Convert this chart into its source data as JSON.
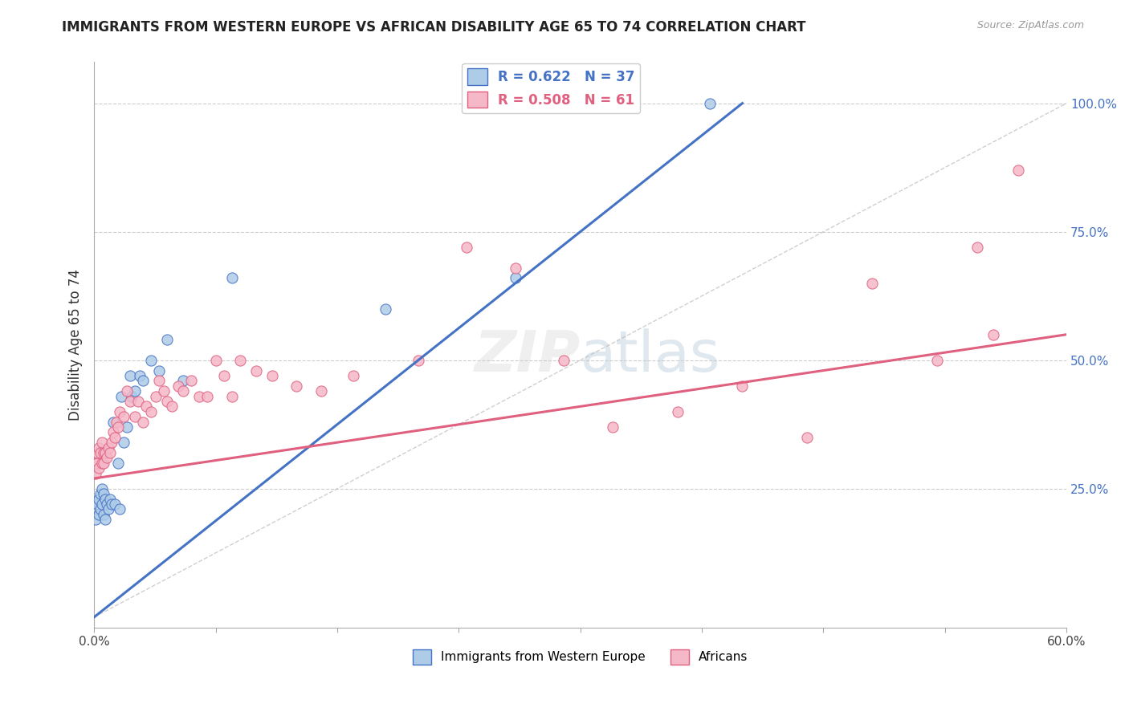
{
  "title": "IMMIGRANTS FROM WESTERN EUROPE VS AFRICAN DISABILITY AGE 65 TO 74 CORRELATION CHART",
  "source": "Source: ZipAtlas.com",
  "ylabel": "Disability Age 65 to 74",
  "xlim": [
    0.0,
    0.6
  ],
  "ylim": [
    -0.02,
    1.08
  ],
  "xticks": [
    0.0,
    0.075,
    0.15,
    0.225,
    0.3,
    0.375,
    0.45,
    0.525,
    0.6
  ],
  "yticks_right": [
    0.25,
    0.5,
    0.75,
    1.0
  ],
  "ytick_labels_right": [
    "25.0%",
    "50.0%",
    "75.0%",
    "100.0%"
  ],
  "legend_r_blue": "R = 0.622",
  "legend_n_blue": "N = 37",
  "legend_r_pink": "R = 0.508",
  "legend_n_pink": "N = 61",
  "legend_label_blue": "Immigrants from Western Europe",
  "legend_label_pink": "Africans",
  "color_blue": "#AECCE8",
  "color_pink": "#F5B8C8",
  "color_blue_line": "#4472C4",
  "color_pink_line": "#E06080",
  "color_blue_text": "#4472C4",
  "color_pink_text": "#E06080",
  "blue_trend": [
    0.0,
    0.4,
    0.0,
    1.0
  ],
  "pink_trend": [
    0.0,
    0.6,
    0.27,
    0.55
  ],
  "blue_x": [
    0.001,
    0.002,
    0.002,
    0.003,
    0.003,
    0.004,
    0.004,
    0.005,
    0.005,
    0.006,
    0.006,
    0.007,
    0.007,
    0.008,
    0.009,
    0.01,
    0.011,
    0.012,
    0.013,
    0.015,
    0.016,
    0.017,
    0.018,
    0.02,
    0.022,
    0.023,
    0.025,
    0.028,
    0.03,
    0.035,
    0.04,
    0.045,
    0.055,
    0.085,
    0.18,
    0.26,
    0.38
  ],
  "blue_y": [
    0.19,
    0.21,
    0.22,
    0.2,
    0.23,
    0.21,
    0.24,
    0.22,
    0.25,
    0.2,
    0.24,
    0.19,
    0.23,
    0.22,
    0.21,
    0.23,
    0.22,
    0.38,
    0.22,
    0.3,
    0.21,
    0.43,
    0.34,
    0.37,
    0.47,
    0.43,
    0.44,
    0.47,
    0.46,
    0.5,
    0.48,
    0.54,
    0.46,
    0.66,
    0.6,
    0.66,
    1.0
  ],
  "pink_x": [
    0.001,
    0.001,
    0.002,
    0.002,
    0.003,
    0.003,
    0.004,
    0.005,
    0.005,
    0.006,
    0.006,
    0.007,
    0.008,
    0.009,
    0.01,
    0.011,
    0.012,
    0.013,
    0.014,
    0.015,
    0.016,
    0.018,
    0.02,
    0.022,
    0.025,
    0.027,
    0.03,
    0.032,
    0.035,
    0.038,
    0.04,
    0.043,
    0.045,
    0.048,
    0.052,
    0.055,
    0.06,
    0.065,
    0.07,
    0.075,
    0.08,
    0.085,
    0.09,
    0.1,
    0.11,
    0.125,
    0.14,
    0.16,
    0.2,
    0.23,
    0.26,
    0.29,
    0.32,
    0.36,
    0.4,
    0.44,
    0.48,
    0.52,
    0.545,
    0.555,
    0.57
  ],
  "pink_y": [
    0.28,
    0.3,
    0.3,
    0.32,
    0.29,
    0.33,
    0.32,
    0.3,
    0.34,
    0.32,
    0.3,
    0.32,
    0.31,
    0.33,
    0.32,
    0.34,
    0.36,
    0.35,
    0.38,
    0.37,
    0.4,
    0.39,
    0.44,
    0.42,
    0.39,
    0.42,
    0.38,
    0.41,
    0.4,
    0.43,
    0.46,
    0.44,
    0.42,
    0.41,
    0.45,
    0.44,
    0.46,
    0.43,
    0.43,
    0.5,
    0.47,
    0.43,
    0.5,
    0.48,
    0.47,
    0.45,
    0.44,
    0.47,
    0.5,
    0.72,
    0.68,
    0.5,
    0.37,
    0.4,
    0.45,
    0.35,
    0.65,
    0.5,
    0.72,
    0.55,
    0.87
  ]
}
